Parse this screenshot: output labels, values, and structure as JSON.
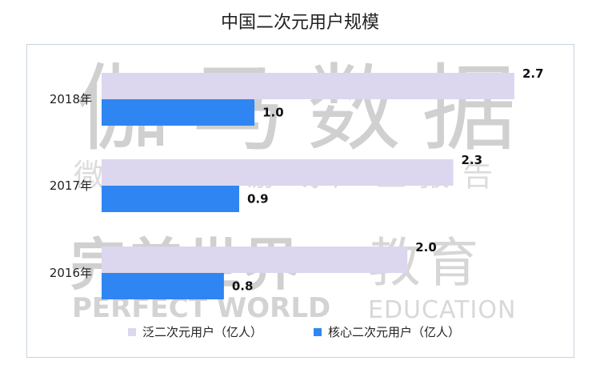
{
  "watermark": {
    "main": "伽马数据",
    "sub": "微信号：游戏产业报告",
    "brand": "完美世界",
    "edu": "教育",
    "brand_en": "PERFECT WORLD",
    "edu_en": "EDUCATION"
  },
  "colors": {
    "series1": "#dcd6ee",
    "series2": "#2f86f2"
  },
  "chart_data": {
    "type": "bar",
    "orientation": "horizontal",
    "title": "中国二次元用户规模",
    "categories": [
      "2018年",
      "2017年",
      "2016年"
    ],
    "series": [
      {
        "name": "泛二次元用户（亿人）",
        "values": [
          2.7,
          2.3,
          2.0
        ]
      },
      {
        "name": "核心二次元用户（亿人）",
        "values": [
          1.0,
          0.9,
          0.8
        ]
      }
    ],
    "data_labels": [
      [
        "2.7",
        "2.3",
        "2.0"
      ],
      [
        "1.0",
        "0.9",
        "0.8"
      ]
    ],
    "xlim": [
      0,
      2.7
    ],
    "grid": false,
    "legend": "bottom"
  }
}
